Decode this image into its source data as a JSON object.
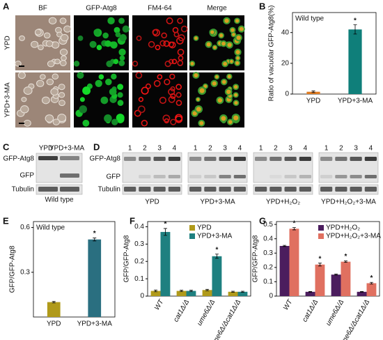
{
  "figure": {
    "labels": [
      "A",
      "B",
      "C",
      "D",
      "E",
      "F",
      "G"
    ]
  },
  "panel_a": {
    "columns": [
      "BF",
      "GFP-Atg8",
      "FM4-64",
      "Merge"
    ],
    "rows": [
      "YPD",
      "YPD+3-MA"
    ]
  },
  "panel_c": {
    "lanes": [
      "YPD",
      "YPD+3-MA"
    ],
    "bands": [
      "GFP-Atg8",
      "GFP",
      "Tubulin"
    ],
    "caption": "Wild type"
  },
  "panel_d": {
    "lanes": [
      "1",
      "2",
      "3",
      "4"
    ],
    "bands": [
      "GFP-Atg8",
      "GFP",
      "Tubulin"
    ],
    "conditions": [
      "YPD",
      "YPD+3-MA",
      "YPD+H₂O₂",
      "YPD+H₂O₂+3-MA"
    ]
  },
  "chart_data": [
    {
      "type": "bar",
      "annotation": "Wild type",
      "ylabel": "Ratio of vacuolar GFP-Atg8(%)",
      "categories": [
        "YPD",
        "YPD+3-MA"
      ],
      "values": [
        1.5,
        42
      ],
      "errors": [
        0.5,
        3
      ],
      "colors": [
        "#e07b20",
        "#0f7f7a"
      ],
      "stars": [
        null,
        "*"
      ],
      "ylim": [
        0,
        53
      ],
      "yticks": [
        0,
        20,
        40
      ]
    },
    {
      "type": "bar",
      "annotation": "Wild type",
      "ylabel": "GFP/GFP-Atg8",
      "categories": [
        "YPD",
        "YPD+3-MA"
      ],
      "values": [
        0.1,
        0.52
      ],
      "errors": [
        0.005,
        0.01
      ],
      "colors": [
        "#b09a1a",
        "#2a6f80"
      ],
      "stars": [
        null,
        "*"
      ],
      "ylim": [
        0,
        0.64
      ],
      "yticks": [
        0.3,
        0.6
      ]
    },
    {
      "type": "grouped_bar",
      "ylabel": "GFP/GFP-Atg8",
      "categories": [
        "WT",
        "cat1Δ/Δ",
        "ume6Δ/Δ",
        "ume6Δ/Δcat1Δ/Δ"
      ],
      "legend": "top-right",
      "ylim": [
        0,
        0.43
      ],
      "yticks": [
        0,
        0.1,
        0.2,
        0.3,
        0.4
      ],
      "series": [
        {
          "name": "YPD",
          "color": "#b09a1a",
          "values": [
            0.03,
            0.03,
            0.035,
            0.025
          ],
          "errors": [
            0.005,
            0.004,
            0.004,
            0.003
          ],
          "stars": [
            null,
            null,
            null,
            null
          ]
        },
        {
          "name": "YPD+3-MA",
          "color": "#1e8080",
          "values": [
            0.37,
            0.03,
            0.23,
            0.025
          ],
          "errors": [
            0.02,
            0.004,
            0.012,
            0.003
          ],
          "stars": [
            "*",
            null,
            "*",
            null
          ]
        }
      ]
    },
    {
      "type": "grouped_bar",
      "ylabel": "GFP/GFP-Atg8",
      "categories": [
        "WT",
        "cat1Δ/Δ",
        "ume6Δ/Δ",
        "ume6Δ/Δcat1Δ/Δ"
      ],
      "legend": "top-right",
      "ylim": [
        0,
        0.52
      ],
      "yticks": [
        0,
        0.1,
        0.2,
        0.3,
        0.4,
        0.5
      ],
      "series": [
        {
          "name": "YPD+H₂O₂",
          "color": "#4b1d5e",
          "values": [
            0.35,
            0.03,
            0.15,
            0.03
          ],
          "errors": [
            0.004,
            0.002,
            0.004,
            0.002
          ],
          "stars": [
            null,
            null,
            null,
            null
          ]
        },
        {
          "name": "YPD+H₂O₂+3-MA",
          "color": "#e07060",
          "values": [
            0.47,
            0.22,
            0.24,
            0.09
          ],
          "errors": [
            0.008,
            0.01,
            0.005,
            0.006
          ],
          "stars": [
            "*",
            "*",
            "*",
            "*"
          ]
        }
      ]
    }
  ]
}
